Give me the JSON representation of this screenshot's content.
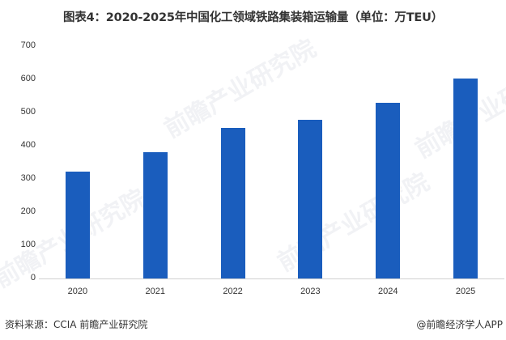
{
  "title": "图表4：2020-2025年中国化工领域铁路集装箱运输量（单位：万TEU）",
  "chart_data": {
    "type": "bar",
    "title": "图表4：2020-2025年中国化工领域铁路集装箱运输量（单位：万TEU）",
    "xlabel": "",
    "ylabel": "",
    "unit": "万TEU",
    "categories": [
      "2020",
      "2021",
      "2022",
      "2023",
      "2024",
      "2025"
    ],
    "values": [
      322,
      380,
      454,
      478,
      529,
      602
    ],
    "series": [
      {
        "name": "铁路集装箱运输量",
        "color": "#1a5dbd",
        "values": [
          322,
          380,
          454,
          478,
          529,
          602
        ]
      }
    ],
    "ylim": [
      0,
      700
    ],
    "yticks": [
      "0",
      "100",
      "200",
      "300",
      "400",
      "500",
      "600",
      "700"
    ],
    "grid": false,
    "legend": null
  },
  "footer": {
    "source": "资料来源：CCIA  前瞻产业研究院",
    "credit": "@前瞻经济学人APP"
  },
  "watermark": "前瞻产业研究院"
}
